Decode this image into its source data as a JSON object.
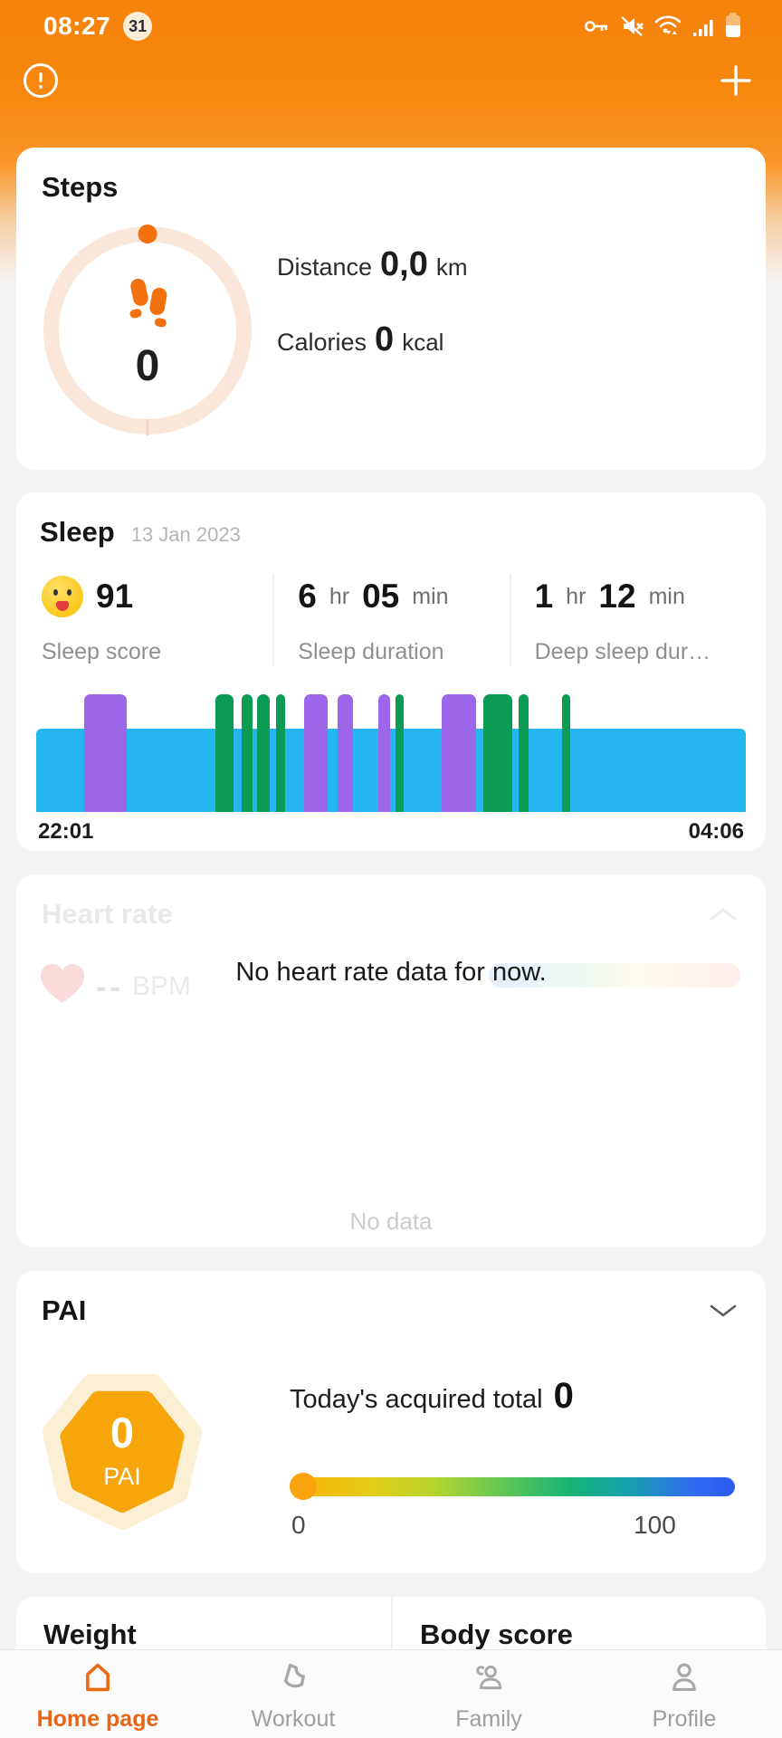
{
  "status_bar": {
    "time": "08:27",
    "badge": "31",
    "icons": [
      "vpn-key-icon",
      "mute-icon",
      "wifi-icon",
      "signal-icon",
      "battery-icon"
    ]
  },
  "steps": {
    "title": "Steps",
    "value": "0",
    "distance_label": "Distance",
    "distance_value": "0,0",
    "distance_unit": "km",
    "calories_label": "Calories",
    "calories_value": "0",
    "calories_unit": "kcal"
  },
  "sleep": {
    "title": "Sleep",
    "date": "13 Jan 2023",
    "score": "91",
    "score_label": "Sleep score",
    "dur_h": "6",
    "dur_hr": "hr",
    "dur_m": "05",
    "dur_min": "min",
    "dur_label": "Sleep duration",
    "deep_h": "1",
    "deep_hr": "hr",
    "deep_m": "12",
    "deep_min": "min",
    "deep_label": "Deep sleep dur…",
    "start_time": "22:01",
    "end_time": "04:06"
  },
  "chart_data": {
    "type": "bar",
    "title": "Sleep stages timeline",
    "x_start": "22:01",
    "x_end": "04:06",
    "legend": [
      "light (blue, base band)",
      "awake (purple, tall)",
      "deep (green, tall)"
    ],
    "colors": {
      "light": "#25b5f0",
      "awake": "#9d66ea",
      "deep": "#0b9b52"
    },
    "base_stage": "light",
    "segments": [
      {
        "stage": "awake",
        "left_pct": 6.7,
        "width_pct": 6.1
      },
      {
        "stage": "deep",
        "left_pct": 25.3,
        "width_pct": 2.5
      },
      {
        "stage": "deep",
        "left_pct": 29.0,
        "width_pct": 1.5
      },
      {
        "stage": "deep",
        "left_pct": 31.1,
        "width_pct": 1.8
      },
      {
        "stage": "deep",
        "left_pct": 33.8,
        "width_pct": 1.3
      },
      {
        "stage": "awake",
        "left_pct": 37.7,
        "width_pct": 3.4
      },
      {
        "stage": "awake",
        "left_pct": 42.5,
        "width_pct": 2.2
      },
      {
        "stage": "awake",
        "left_pct": 48.2,
        "width_pct": 1.7
      },
      {
        "stage": "deep",
        "left_pct": 50.6,
        "width_pct": 1.2
      },
      {
        "stage": "awake",
        "left_pct": 57.1,
        "width_pct": 4.9
      },
      {
        "stage": "deep",
        "left_pct": 63.0,
        "width_pct": 4.1
      },
      {
        "stage": "deep",
        "left_pct": 68.0,
        "width_pct": 1.4
      },
      {
        "stage": "deep",
        "left_pct": 74.1,
        "width_pct": 1.2
      }
    ]
  },
  "heart_rate": {
    "title": "Heart rate",
    "toast": "No heart rate data for now.",
    "bpm_value": "--",
    "bpm_unit": "BPM",
    "empty": "No data"
  },
  "pai": {
    "title": "PAI",
    "value": "0",
    "unit": "PAI",
    "total_label": "Today's acquired total",
    "total_value": "0",
    "scale_min": "0",
    "scale_max": "100"
  },
  "weight": {
    "title": "Weight"
  },
  "body_score": {
    "title": "Body score"
  },
  "nav": {
    "items": [
      {
        "label": "Home page",
        "icon": "home-icon",
        "active": true
      },
      {
        "label": "Workout",
        "icon": "shoe-icon",
        "active": false
      },
      {
        "label": "Family",
        "icon": "family-icon",
        "active": false
      },
      {
        "label": "Profile",
        "icon": "person-icon",
        "active": false
      }
    ]
  },
  "colors": {
    "accent_orange": "#f6830b",
    "active_nav": "#e96414",
    "sleep_light": "#25b5f0",
    "sleep_awake": "#9d66ea",
    "sleep_deep": "#0b9b52",
    "pai_orange": "#f6a60b",
    "ring_track": "#fbe7da"
  }
}
